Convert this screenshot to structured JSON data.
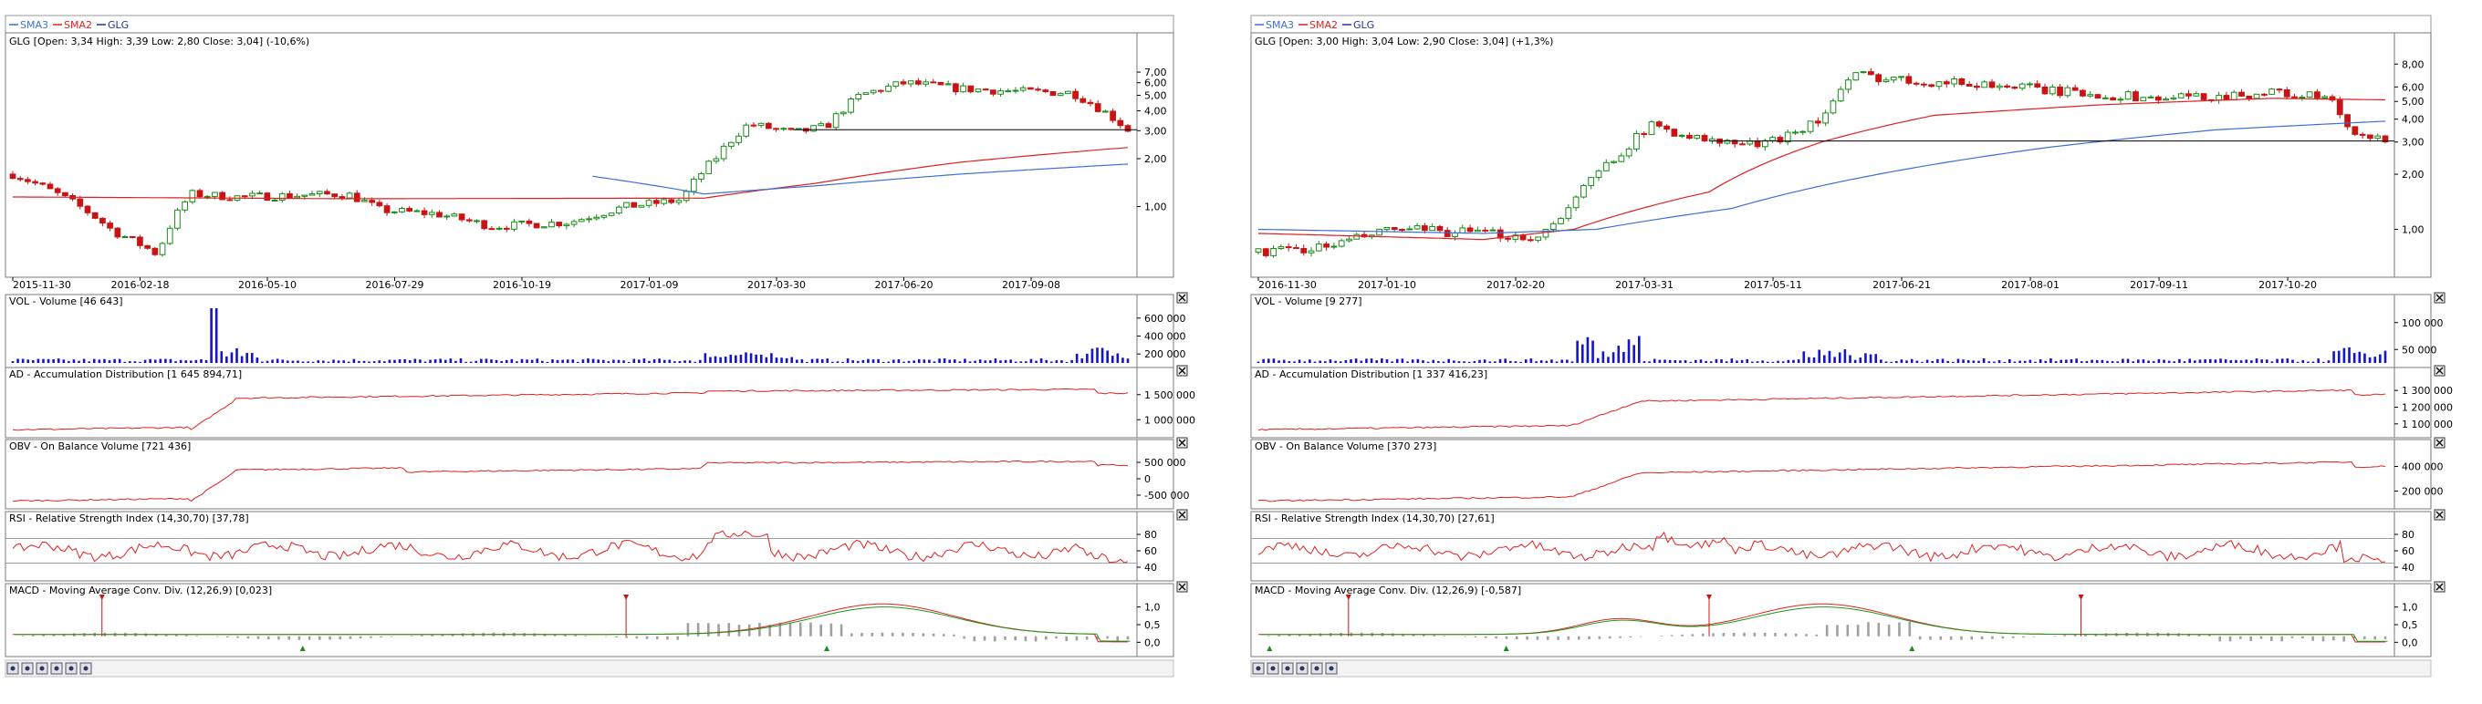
{
  "charts": [
    {
      "legend": [
        {
          "name": "SMA3",
          "color": "#3a6fd6"
        },
        {
          "name": "SMA2",
          "color": "#e02020"
        },
        {
          "name": "GLG",
          "color": "#2030a0"
        }
      ],
      "title": "GLG [Open: 3,34  High: 3,39  Low: 2,80  Close: 3,04] (-10,6%)",
      "price_ticks": [
        "7,00",
        "6,00",
        "5,00",
        "4,00",
        "3,00",
        "2,00",
        "1,00"
      ],
      "date_ticks": [
        "2015-11-30",
        "2016-02-18",
        "2016-05-10",
        "2016-07-29",
        "2016-10-19",
        "2017-01-09",
        "2017-03-30",
        "2017-06-20",
        "2017-09-08"
      ],
      "panels": [
        {
          "title": "VOL - Volume [46 643]",
          "ticks": [
            "600 000",
            "400 000",
            "200 000"
          ]
        },
        {
          "title": "AD - Accumulation Distribution [1 645 894,71]",
          "ticks": [
            "1 500 000",
            "1 000 000"
          ]
        },
        {
          "title": "OBV - On Balance Volume [721 436]",
          "ticks": [
            "500 000",
            "0",
            "-500 000"
          ]
        },
        {
          "title": "RSI - Relative Strength Index (14,30,70) [37,78]",
          "ticks": [
            "80",
            "60",
            "40"
          ]
        },
        {
          "title": "MACD - Moving Average Conv. Div. (12,26,9) [0,023]",
          "ticks": [
            "1,0",
            "0,5",
            "0,0"
          ]
        }
      ],
      "close_icon": "close-x-icon"
    },
    {
      "legend": [
        {
          "name": "SMA3",
          "color": "#3a6fd6"
        },
        {
          "name": "SMA2",
          "color": "#e02020"
        },
        {
          "name": "GLG",
          "color": "#2030a0"
        }
      ],
      "title": "GLG [Open: 3,00  High: 3,04  Low: 2,90  Close: 3,04] (+1,3%)",
      "price_ticks": [
        "8,00",
        "6,00",
        "5,00",
        "4,00",
        "3,00",
        "2,00",
        "1,00"
      ],
      "date_ticks": [
        "2016-11-30",
        "2017-01-10",
        "2017-02-20",
        "2017-03-31",
        "2017-05-11",
        "2017-06-21",
        "2017-08-01",
        "2017-09-11",
        "2017-10-20"
      ],
      "panels": [
        {
          "title": "VOL - Volume [9 277]",
          "ticks": [
            "100 000",
            "50 000"
          ]
        },
        {
          "title": "AD - Accumulation Distribution [1 337 416,23]",
          "ticks": [
            "1 300 000",
            "1 200 000",
            "1 100 000"
          ]
        },
        {
          "title": "OBV - On Balance Volume [370 273]",
          "ticks": [
            "400 000",
            "200 000"
          ]
        },
        {
          "title": "RSI - Relative Strength Index (14,30,70) [27,61]",
          "ticks": [
            "80",
            "60",
            "40"
          ]
        },
        {
          "title": "MACD - Moving Average Conv. Div. (12,26,9) [-0,587]",
          "ticks": [
            "1,0",
            "0,5",
            "0,0"
          ]
        }
      ],
      "close_icon": "close-x-icon"
    }
  ],
  "toolbar_icons": [
    "save-icon",
    "print-icon",
    "zoom-in-icon",
    "zoom-out-icon",
    "fit-icon",
    "settings-icon"
  ],
  "colors": {
    "up": "#1a8a1a",
    "down": "#c81414",
    "volume": "#1414c8",
    "sma2": "#e02020",
    "sma3": "#3a6fd6",
    "macd_signal": "#1a9a1a",
    "hist": "#a0a0a0"
  },
  "chart_data": [
    {
      "type": "candlestick",
      "scale": "log",
      "ylim": [
        0.4,
        9
      ],
      "series": [
        {
          "name": "GLG"
        },
        {
          "name": "SMA2"
        },
        {
          "name": "SMA3"
        }
      ],
      "last": {
        "open": 3.34,
        "high": 3.39,
        "low": 2.8,
        "close": 3.04,
        "change_pct": -10.6
      },
      "sma2_path": [
        [
          0,
          1.15
        ],
        [
          0.3,
          1.12
        ],
        [
          0.62,
          1.13
        ],
        [
          0.72,
          1.4
        ],
        [
          0.85,
          1.9
        ],
        [
          1.0,
          2.35
        ]
      ],
      "sma3_path": [
        [
          0.52,
          1.55
        ],
        [
          0.62,
          1.2
        ],
        [
          0.72,
          1.35
        ],
        [
          0.85,
          1.6
        ],
        [
          1.0,
          1.85
        ]
      ],
      "price_path": [
        [
          0,
          1.6
        ],
        [
          0.05,
          1.1
        ],
        [
          0.09,
          0.7
        ],
        [
          0.13,
          0.5
        ],
        [
          0.16,
          1.2
        ],
        [
          0.2,
          1.15
        ],
        [
          0.3,
          1.2
        ],
        [
          0.33,
          0.95
        ],
        [
          0.38,
          0.9
        ],
        [
          0.43,
          0.75
        ],
        [
          0.5,
          0.8
        ],
        [
          0.55,
          1.0
        ],
        [
          0.6,
          1.1
        ],
        [
          0.63,
          2.0
        ],
        [
          0.66,
          3.3
        ],
        [
          0.7,
          2.9
        ],
        [
          0.73,
          3.2
        ],
        [
          0.76,
          5.0
        ],
        [
          0.8,
          6.0
        ],
        [
          0.85,
          5.5
        ],
        [
          0.9,
          5.3
        ],
        [
          0.95,
          5.2
        ],
        [
          0.98,
          3.9
        ],
        [
          1.0,
          3.04
        ]
      ],
      "indicators": {
        "vol_last": 46643,
        "ad_last": 1645894.71,
        "obv_last": 721436,
        "rsi_last": 37.78,
        "macd_last": 0.023
      }
    },
    {
      "type": "candlestick",
      "scale": "log",
      "ylim": [
        0.6,
        9
      ],
      "series": [
        {
          "name": "GLG"
        },
        {
          "name": "SMA2"
        },
        {
          "name": "SMA3"
        }
      ],
      "last": {
        "open": 3.0,
        "high": 3.04,
        "low": 2.9,
        "close": 3.04,
        "change_pct": 1.3
      },
      "sma2_path": [
        [
          0,
          0.95
        ],
        [
          0.2,
          0.88
        ],
        [
          0.28,
          1.0
        ],
        [
          0.4,
          1.6
        ],
        [
          0.5,
          3.0
        ],
        [
          0.6,
          4.2
        ],
        [
          0.75,
          4.8
        ],
        [
          0.9,
          5.2
        ],
        [
          1.0,
          5.1
        ]
      ],
      "sma3_path": [
        [
          0,
          1.0
        ],
        [
          0.2,
          0.95
        ],
        [
          0.3,
          1.0
        ],
        [
          0.42,
          1.3
        ],
        [
          0.55,
          2.0
        ],
        [
          0.7,
          2.8
        ],
        [
          0.85,
          3.5
        ],
        [
          1.0,
          3.9
        ]
      ],
      "price_path": [
        [
          0,
          0.75
        ],
        [
          0.06,
          0.8
        ],
        [
          0.12,
          1.0
        ],
        [
          0.2,
          0.95
        ],
        [
          0.25,
          0.9
        ],
        [
          0.28,
          1.4
        ],
        [
          0.32,
          2.6
        ],
        [
          0.35,
          3.7
        ],
        [
          0.4,
          3.0
        ],
        [
          0.45,
          2.9
        ],
        [
          0.5,
          4.0
        ],
        [
          0.53,
          7.0
        ],
        [
          0.58,
          6.5
        ],
        [
          0.65,
          6.2
        ],
        [
          0.72,
          5.6
        ],
        [
          0.8,
          5.2
        ],
        [
          0.86,
          5.4
        ],
        [
          0.9,
          5.6
        ],
        [
          0.95,
          5.2
        ],
        [
          0.97,
          3.2
        ],
        [
          1.0,
          3.04
        ]
      ],
      "indicators": {
        "vol_last": 9277,
        "ad_last": 1337416.23,
        "obv_last": 370273,
        "rsi_last": 27.61,
        "macd_last": -0.587
      }
    }
  ]
}
